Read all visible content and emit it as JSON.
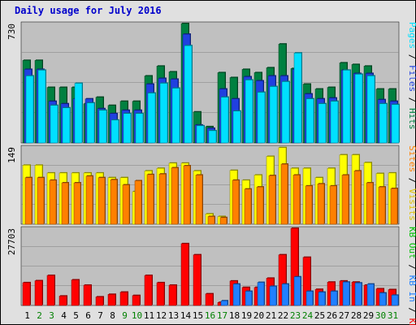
{
  "title": "Daily usage for July 2016",
  "chart_data": [
    {
      "type": "bar",
      "categories": [
        "1",
        "2",
        "3",
        "4",
        "5",
        "6",
        "7",
        "8",
        "9",
        "10",
        "11",
        "12",
        "13",
        "14",
        "15",
        "16",
        "17",
        "18",
        "19",
        "20",
        "21",
        "22",
        "23",
        "24",
        "25",
        "26",
        "27",
        "28",
        "29",
        "30",
        "31"
      ],
      "weekend_days": [
        "2",
        "3",
        "9",
        "10",
        "16",
        "17",
        "23",
        "24",
        "30",
        "31"
      ],
      "ylim": [
        0,
        730
      ],
      "ymax_label": "730",
      "series": [
        {
          "name": "Hits",
          "color": "#008040",
          "values": [
            505,
            505,
            340,
            340,
            340,
            240,
            280,
            230,
            255,
            255,
            410,
            470,
            435,
            730,
            190,
            100,
            430,
            400,
            450,
            430,
            460,
            605,
            455,
            360,
            330,
            340,
            490,
            480,
            470,
            330,
            330
          ]
        },
        {
          "name": "Files",
          "color": "#2040e0",
          "values": [
            450,
            450,
            255,
            240,
            270,
            270,
            210,
            180,
            200,
            200,
            360,
            395,
            390,
            665,
            110,
            90,
            330,
            270,
            405,
            380,
            410,
            410,
            450,
            300,
            270,
            275,
            445,
            425,
            425,
            265,
            255
          ]
        },
        {
          "name": "Pages",
          "color": "#00e0ff",
          "values": [
            410,
            445,
            230,
            215,
            365,
            245,
            200,
            140,
            180,
            180,
            305,
            365,
            335,
            595,
            105,
            75,
            280,
            195,
            385,
            310,
            345,
            375,
            550,
            270,
            240,
            255,
            445,
            420,
            410,
            240,
            235
          ]
        }
      ]
    },
    {
      "type": "bar",
      "categories": [
        "1",
        "2",
        "3",
        "4",
        "5",
        "6",
        "7",
        "8",
        "9",
        "10",
        "11",
        "12",
        "13",
        "14",
        "15",
        "16",
        "17",
        "18",
        "19",
        "20",
        "21",
        "22",
        "23",
        "24",
        "25",
        "26",
        "27",
        "28",
        "29",
        "30",
        "31"
      ],
      "ylim": [
        0,
        149
      ],
      "ymax_label": "149",
      "series": [
        {
          "name": "Visits",
          "color": "#ffff00",
          "values": [
            114,
            114,
            99,
            99,
            99,
            99,
            99,
            90,
            90,
            63,
            103,
            108,
            118,
            118,
            103,
            20,
            15,
            104,
            85,
            95,
            131,
            148,
            108,
            108,
            90,
            108,
            134,
            134,
            119,
            98,
            99
          ]
        },
        {
          "name": "Sites",
          "color": "#ff8000",
          "values": [
            90,
            90,
            85,
            80,
            80,
            93,
            90,
            86,
            76,
            84,
            96,
            97,
            109,
            113,
            95,
            15,
            13,
            85,
            68,
            72,
            94,
            116,
            95,
            74,
            78,
            74,
            95,
            103,
            80,
            72,
            69
          ]
        }
      ]
    },
    {
      "type": "bar",
      "categories": [
        "1",
        "2",
        "3",
        "4",
        "5",
        "6",
        "7",
        "8",
        "9",
        "10",
        "11",
        "12",
        "13",
        "14",
        "15",
        "16",
        "17",
        "18",
        "19",
        "20",
        "21",
        "22",
        "23",
        "24",
        "25",
        "26",
        "27",
        "28",
        "29",
        "30",
        "31"
      ],
      "ylim": [
        0,
        27703
      ],
      "ymax_label": "27703",
      "series": [
        {
          "name": "KB F",
          "color": "#ff0000",
          "values": [
            8200,
            8900,
            10800,
            3400,
            9200,
            7300,
            3100,
            4000,
            4800,
            3600,
            10800,
            8200,
            7300,
            22200,
            18200,
            4200,
            1100,
            8800,
            6500,
            6500,
            9800,
            18200,
            27700,
            17300,
            5800,
            8400,
            8800,
            8400,
            7300,
            6000,
            5700
          ]
        },
        {
          "name": "KB In",
          "color": "#2080ff",
          "values": [
            0,
            0,
            0,
            0,
            0,
            0,
            0,
            0,
            0,
            0,
            0,
            0,
            0,
            0,
            0,
            0,
            1700,
            7700,
            5100,
            8300,
            6900,
            7700,
            10300,
            5100,
            4800,
            5100,
            8400,
            8100,
            7700,
            4500,
            3700
          ]
        },
        {
          "name": "KB Out",
          "color": "#00c000",
          "values": [
            0,
            0,
            0,
            0,
            0,
            0,
            0,
            0,
            0,
            0,
            0,
            0,
            0,
            0,
            0,
            0,
            0,
            0,
            0,
            0,
            0,
            0,
            0,
            0,
            0,
            0,
            0,
            0,
            0,
            0,
            0
          ]
        }
      ]
    }
  ]
}
